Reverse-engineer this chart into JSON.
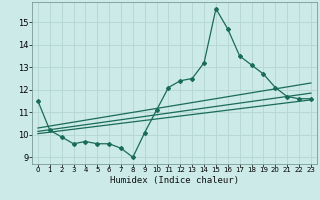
{
  "title": "",
  "xlabel": "Humidex (Indice chaleur)",
  "bg_color": "#cceae7",
  "line_color": "#1a6b5a",
  "grid_color": "#b8d8d4",
  "x_ticks": [
    0,
    1,
    2,
    3,
    4,
    5,
    6,
    7,
    8,
    9,
    10,
    11,
    12,
    13,
    14,
    15,
    16,
    17,
    18,
    19,
    20,
    21,
    22,
    23
  ],
  "y_ticks": [
    9,
    10,
    11,
    12,
    13,
    14,
    15
  ],
  "ylim": [
    8.7,
    15.9
  ],
  "xlim": [
    -0.5,
    23.5
  ],
  "series1_x": [
    0,
    1,
    2,
    3,
    4,
    5,
    6,
    7,
    8,
    9,
    10,
    11,
    12,
    13,
    14,
    15,
    16,
    17,
    18,
    19,
    20,
    21,
    22,
    23
  ],
  "series1_y": [
    11.5,
    10.2,
    9.9,
    9.6,
    9.7,
    9.6,
    9.6,
    9.4,
    9.0,
    10.1,
    11.1,
    12.1,
    12.4,
    12.5,
    13.2,
    15.6,
    14.7,
    13.5,
    13.1,
    12.7,
    12.1,
    11.7,
    11.6,
    11.6
  ],
  "series2_x": [
    0,
    23
  ],
  "series2_y": [
    10.05,
    11.55
  ],
  "series3_x": [
    0,
    23
  ],
  "series3_y": [
    10.15,
    11.85
  ],
  "series4_x": [
    0,
    23
  ],
  "series4_y": [
    10.3,
    12.3
  ]
}
